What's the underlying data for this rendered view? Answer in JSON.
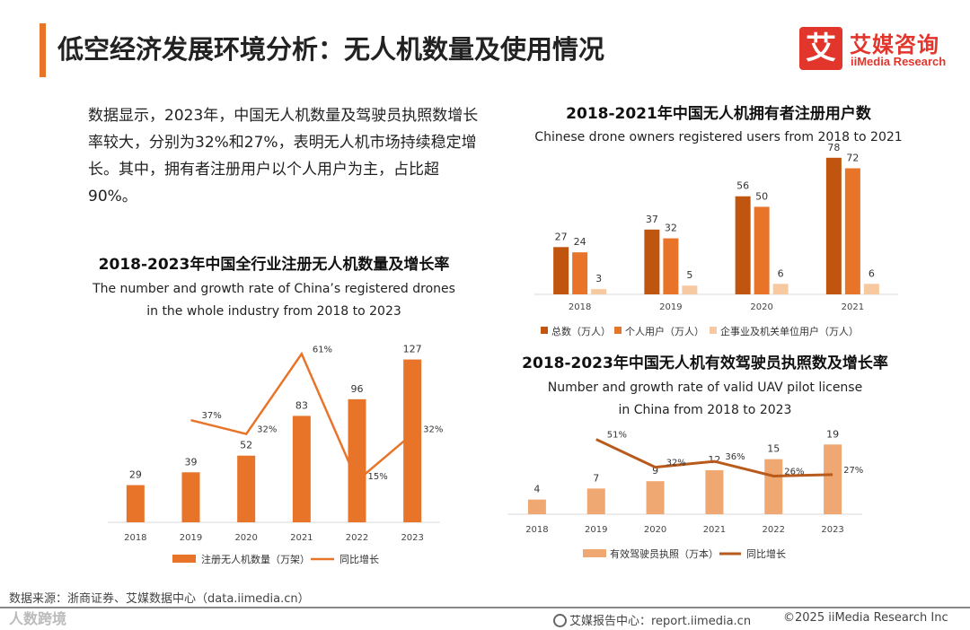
{
  "header": {
    "title": "低空经济发展环境分析：无人机数量及使用情况",
    "logo_mark": "艾",
    "logo_cn": "艾媒咨询",
    "logo_en": "iiMedia Research"
  },
  "intro": {
    "text": "数据显示，2023年，中国无人机数量及驾驶员执照数增长率较大，分别为32%和27%，表明无人机市场持续稳定增长。其中，拥有者注册用户以个人用户为主，占比超90%。"
  },
  "colors": {
    "accent": "#e8742a",
    "dark_orange": "#c0550f",
    "light_peach": "#f7c9a0",
    "pale_bar": "#f0a872",
    "line_brown": "#b85a1c"
  },
  "chart_data": [
    {
      "id": "registered_drones",
      "type": "bar+line",
      "title": "2018-2023年中国全行业注册无人机数量及增长率",
      "subtitle_line1": "The number and growth rate of China’s  registered drones",
      "subtitle_line2": "in the whole industry from 2018 to 2023",
      "categories": [
        "2018",
        "2019",
        "2020",
        "2021",
        "2022",
        "2023"
      ],
      "series": [
        {
          "name": "注册无人机数量（万架）",
          "kind": "bar",
          "values": [
            29,
            39,
            52,
            83,
            96,
            127
          ],
          "labels": [
            "29",
            "39",
            "52",
            "83",
            "96",
            "127"
          ]
        },
        {
          "name": "同比增长",
          "kind": "line",
          "values": [
            null,
            37,
            32,
            61,
            15,
            32
          ],
          "labels": [
            "",
            "37%",
            "32%",
            "61%",
            "15%",
            "32%"
          ]
        }
      ],
      "ylim": [
        0,
        140
      ],
      "line_ylim": [
        0,
        65
      ],
      "legend": "bottom"
    },
    {
      "id": "owner_users",
      "type": "bar",
      "title": "2018-2021年中国无人机拥有者注册用户数",
      "subtitle": "Chinese drone owners registered users from 2018 to 2021",
      "categories": [
        "2018",
        "2019",
        "2020",
        "2021"
      ],
      "series": [
        {
          "name": "总数（万人）",
          "values": [
            27,
            37,
            56,
            78
          ]
        },
        {
          "name": "个人用户（万人）",
          "values": [
            24,
            32,
            50,
            72
          ]
        },
        {
          "name": "企事业及机关单位用户（万人）",
          "values": [
            3,
            5,
            6,
            6
          ]
        }
      ],
      "ylim": [
        0,
        82
      ],
      "legend": "bottom"
    },
    {
      "id": "pilot_licenses",
      "type": "bar+line",
      "title": "2018-2023年中国无人机有效驾驶员执照数及增长率",
      "subtitle_line1": "Number and growth rate of valid UAV pilot license",
      "subtitle_line2": "in China  from 2018 to 2023",
      "categories": [
        "2018",
        "2019",
        "2020",
        "2021",
        "2022",
        "2023"
      ],
      "series": [
        {
          "name": "有效驾驶员执照（万本）",
          "kind": "bar",
          "values": [
            4,
            7,
            9,
            12,
            15,
            19
          ],
          "labels": [
            "4",
            "7",
            "9",
            "12",
            "15",
            "19"
          ]
        },
        {
          "name": "同比增长",
          "kind": "line",
          "values": [
            null,
            51,
            32,
            36,
            26,
            27
          ],
          "labels": [
            "",
            "51%",
            "32%",
            "36%",
            "26%",
            "27%"
          ]
        }
      ],
      "ylim": [
        0,
        22
      ],
      "line_ylim": [
        0,
        55
      ],
      "legend": "bottom"
    }
  ],
  "footer": {
    "source": "数据来源：浙商证券、艾媒数据中心（data.iimedia.cn）",
    "watermark": "人数跨境",
    "report": "艾媒报告中心：report.iimedia.cn",
    "copyright": "©2025  iiMedia Research Inc"
  }
}
